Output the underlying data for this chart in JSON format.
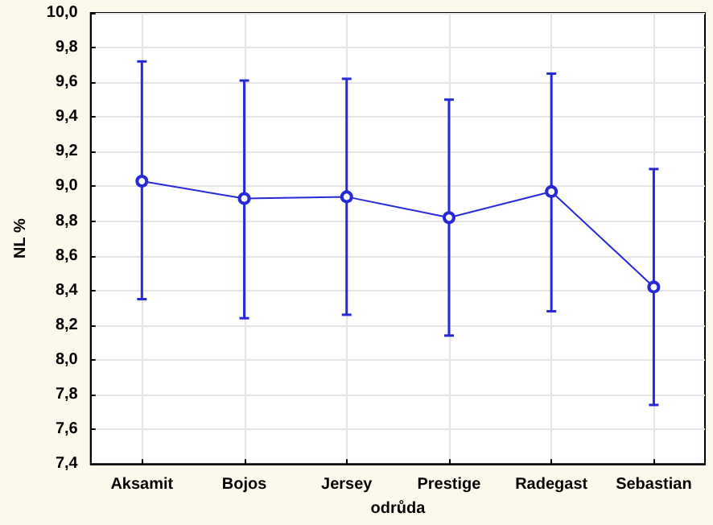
{
  "chart_data": {
    "type": "line",
    "xlabel": "odrůda",
    "ylabel": "NL %",
    "categories": [
      "Aksamit",
      "Bojos",
      "Jersey",
      "Prestige",
      "Radegast",
      "Sebastian"
    ],
    "series": [
      {
        "color": "#2828d8",
        "values": [
          9.03,
          8.93,
          8.94,
          8.82,
          8.97,
          8.42
        ],
        "errors": [
          [
            8.35,
            9.72
          ],
          [
            8.24,
            9.61
          ],
          [
            8.26,
            9.62
          ],
          [
            8.14,
            9.5
          ],
          [
            8.28,
            9.65
          ],
          [
            7.74,
            9.1
          ]
        ]
      }
    ],
    "ylim": [
      7.4,
      10.0
    ],
    "yticks": [
      {
        "value": 7.4,
        "label": "7,4"
      },
      {
        "value": 7.6,
        "label": "7,6"
      },
      {
        "value": 7.8,
        "label": "7,8"
      },
      {
        "value": 8.0,
        "label": "8,0"
      },
      {
        "value": 8.2,
        "label": "8,2"
      },
      {
        "value": 8.4,
        "label": "8,4"
      },
      {
        "value": 8.6,
        "label": "8,6"
      },
      {
        "value": 8.8,
        "label": "8,8"
      },
      {
        "value": 9.0,
        "label": "9,0"
      },
      {
        "value": 9.2,
        "label": "9,2"
      },
      {
        "value": 9.4,
        "label": "9,4"
      },
      {
        "value": 9.6,
        "label": "9,6"
      },
      {
        "value": 9.8,
        "label": "9,8"
      },
      {
        "value": 10.0,
        "label": "10,0"
      }
    ],
    "grid": true,
    "marker": "circle",
    "line_style": "solid"
  }
}
